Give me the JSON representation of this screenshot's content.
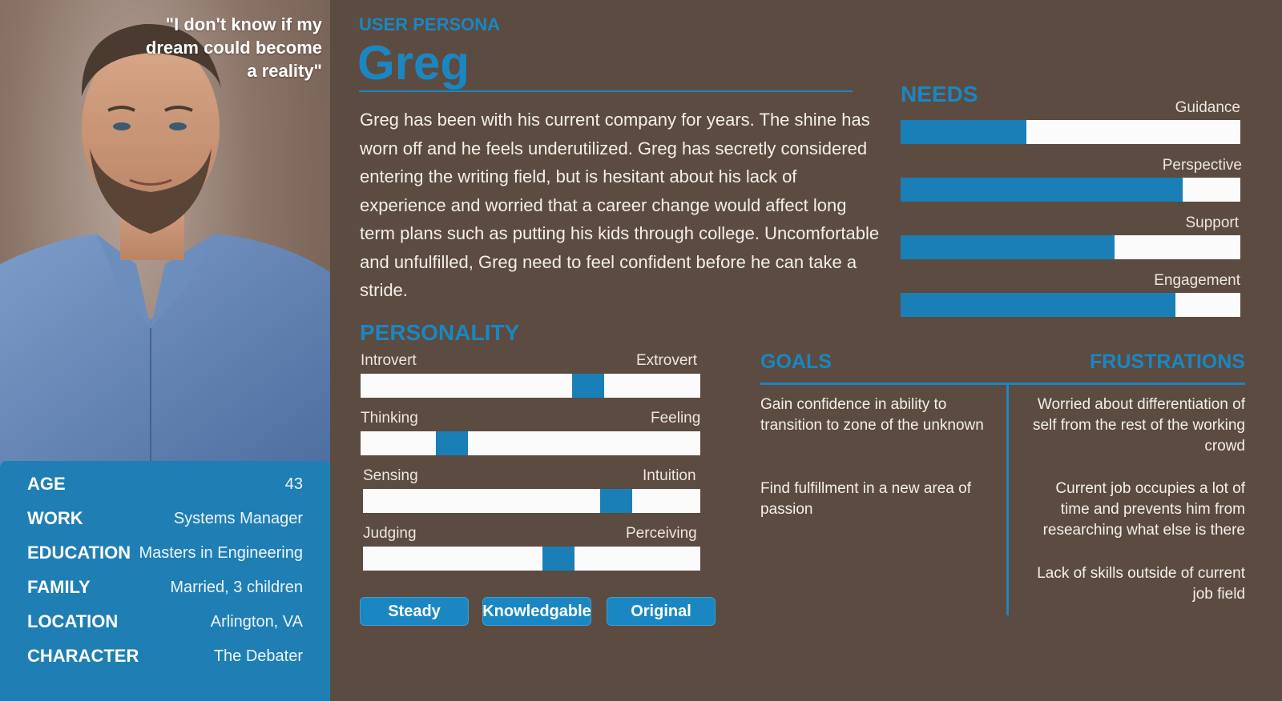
{
  "quote": "\"I don't know if my dream could become a reality\"",
  "profile": [
    {
      "label": "AGE",
      "value": "43"
    },
    {
      "label": "WORK",
      "value": "Systems Manager"
    },
    {
      "label": "EDUCATION",
      "value": "Masters in Engineering"
    },
    {
      "label": "FAMILY",
      "value": "Married, 3 children"
    },
    {
      "label": "LOCATION",
      "value": "Arlington, VA"
    },
    {
      "label": "CHARACTER",
      "value": "The Debater"
    }
  ],
  "header": {
    "eyebrow": "USER PERSONA",
    "name": "Greg"
  },
  "bio": "Greg has been with his current company for years. The shine has worn off and he feels underutilized. Greg has secretly considered entering the writing field, but is hesitant about his lack of experience and worried that a career change would affect long term plans such as putting his kids through college. Uncomfortable and unfulfilled, Greg need to feel confident before he can take a stride.",
  "needs": {
    "title": "NEEDS",
    "items": [
      {
        "label": "Guidance",
        "level": 0.37
      },
      {
        "label": "Perspective",
        "level": 0.83
      },
      {
        "label": "Support",
        "level": 0.63
      },
      {
        "label": "Engagement",
        "level": 0.81
      }
    ]
  },
  "personality": {
    "title": "PERSONALITY",
    "traits": [
      {
        "left": "Introvert",
        "right": "Extrovert",
        "position": 0.67
      },
      {
        "left": "Thinking",
        "right": "Feeling",
        "position": 0.27
      },
      {
        "left": "Sensing",
        "right": "Intuition",
        "position": 0.75
      },
      {
        "left": "Judging",
        "right": "Perceiving",
        "position": 0.58
      }
    ],
    "tags": [
      "Steady",
      "Knowledgable",
      "Original"
    ]
  },
  "goals": {
    "title": "GOALS",
    "items": [
      "Gain confidence in ability to transition to zone of the unknown",
      "Find fulfillment in a new area of passion"
    ]
  },
  "frustrations": {
    "title": "FRUSTRATIONS",
    "items": [
      "Worried about differentiation of self from the rest of the working crowd",
      "Current job occupies a lot of time and prevents him from researching what else is there",
      "Lack of skills outside of current job field"
    ]
  },
  "colors": {
    "background": "#5c4b40",
    "accent": "#1a87c2",
    "bar_fill": "#1a7fb6",
    "track": "#fbfbfb"
  }
}
